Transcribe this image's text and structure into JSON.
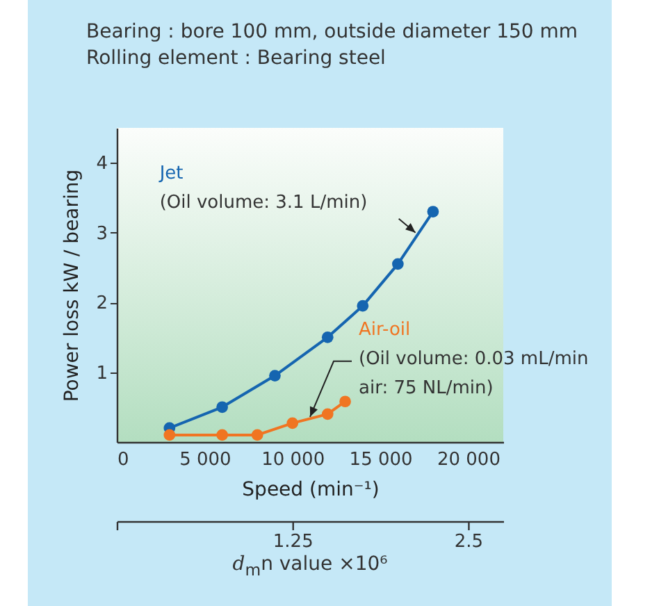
{
  "chart_data": {
    "type": "line",
    "title": "Bearing : bore 100 mm, outside diameter 150 mm",
    "subtitle": "Rolling element : Bearing steel",
    "xlabel": "Speed (min⁻¹)",
    "ylabel": "Power loss kW / bearing",
    "x2label": "d$_{m}$n value ×10⁶",
    "xlim": [
      0,
      22000
    ],
    "xticks": [
      0,
      {
        "value": 5000,
        "label": "5 000"
      },
      {
        "value": 10000,
        "label": "10 000"
      },
      {
        "value": 15000,
        "label": "15 000"
      },
      {
        "value": 20000,
        "label": "20 000"
      }
    ],
    "ylim": [
      0,
      4.5
    ],
    "yticks": [
      1,
      2,
      3,
      4
    ],
    "x2lim": [
      0,
      2.75
    ],
    "x2ticks": [
      {
        "value": 0,
        "label": null
      },
      1.25,
      2.5
    ],
    "marker": "circle",
    "grid": false,
    "legend": false,
    "series": [
      {
        "name": "Jet",
        "color": "#1565b0",
        "x": [
          3000,
          6000,
          9000,
          12000,
          14000,
          16000,
          18000
        ],
        "values": [
          0.2,
          0.5,
          0.95,
          1.5,
          1.95,
          2.55,
          3.3
        ]
      },
      {
        "name": "Air-oil",
        "color": "#f07522",
        "x": [
          3000,
          6000,
          8000,
          10000,
          12000,
          13000
        ],
        "values": [
          0.1,
          0.1,
          0.1,
          0.27,
          0.4,
          0.58
        ]
      }
    ],
    "annotations": [
      {
        "text": "(Oil volume: 3.1 L/min)",
        "x": 17000,
        "y": 3.0
      },
      {
        "text": "(Oil volume: 0.03 mL/min\nair: 75 NL/min)",
        "x": 11000,
        "y": 0.36
      }
    ]
  }
}
